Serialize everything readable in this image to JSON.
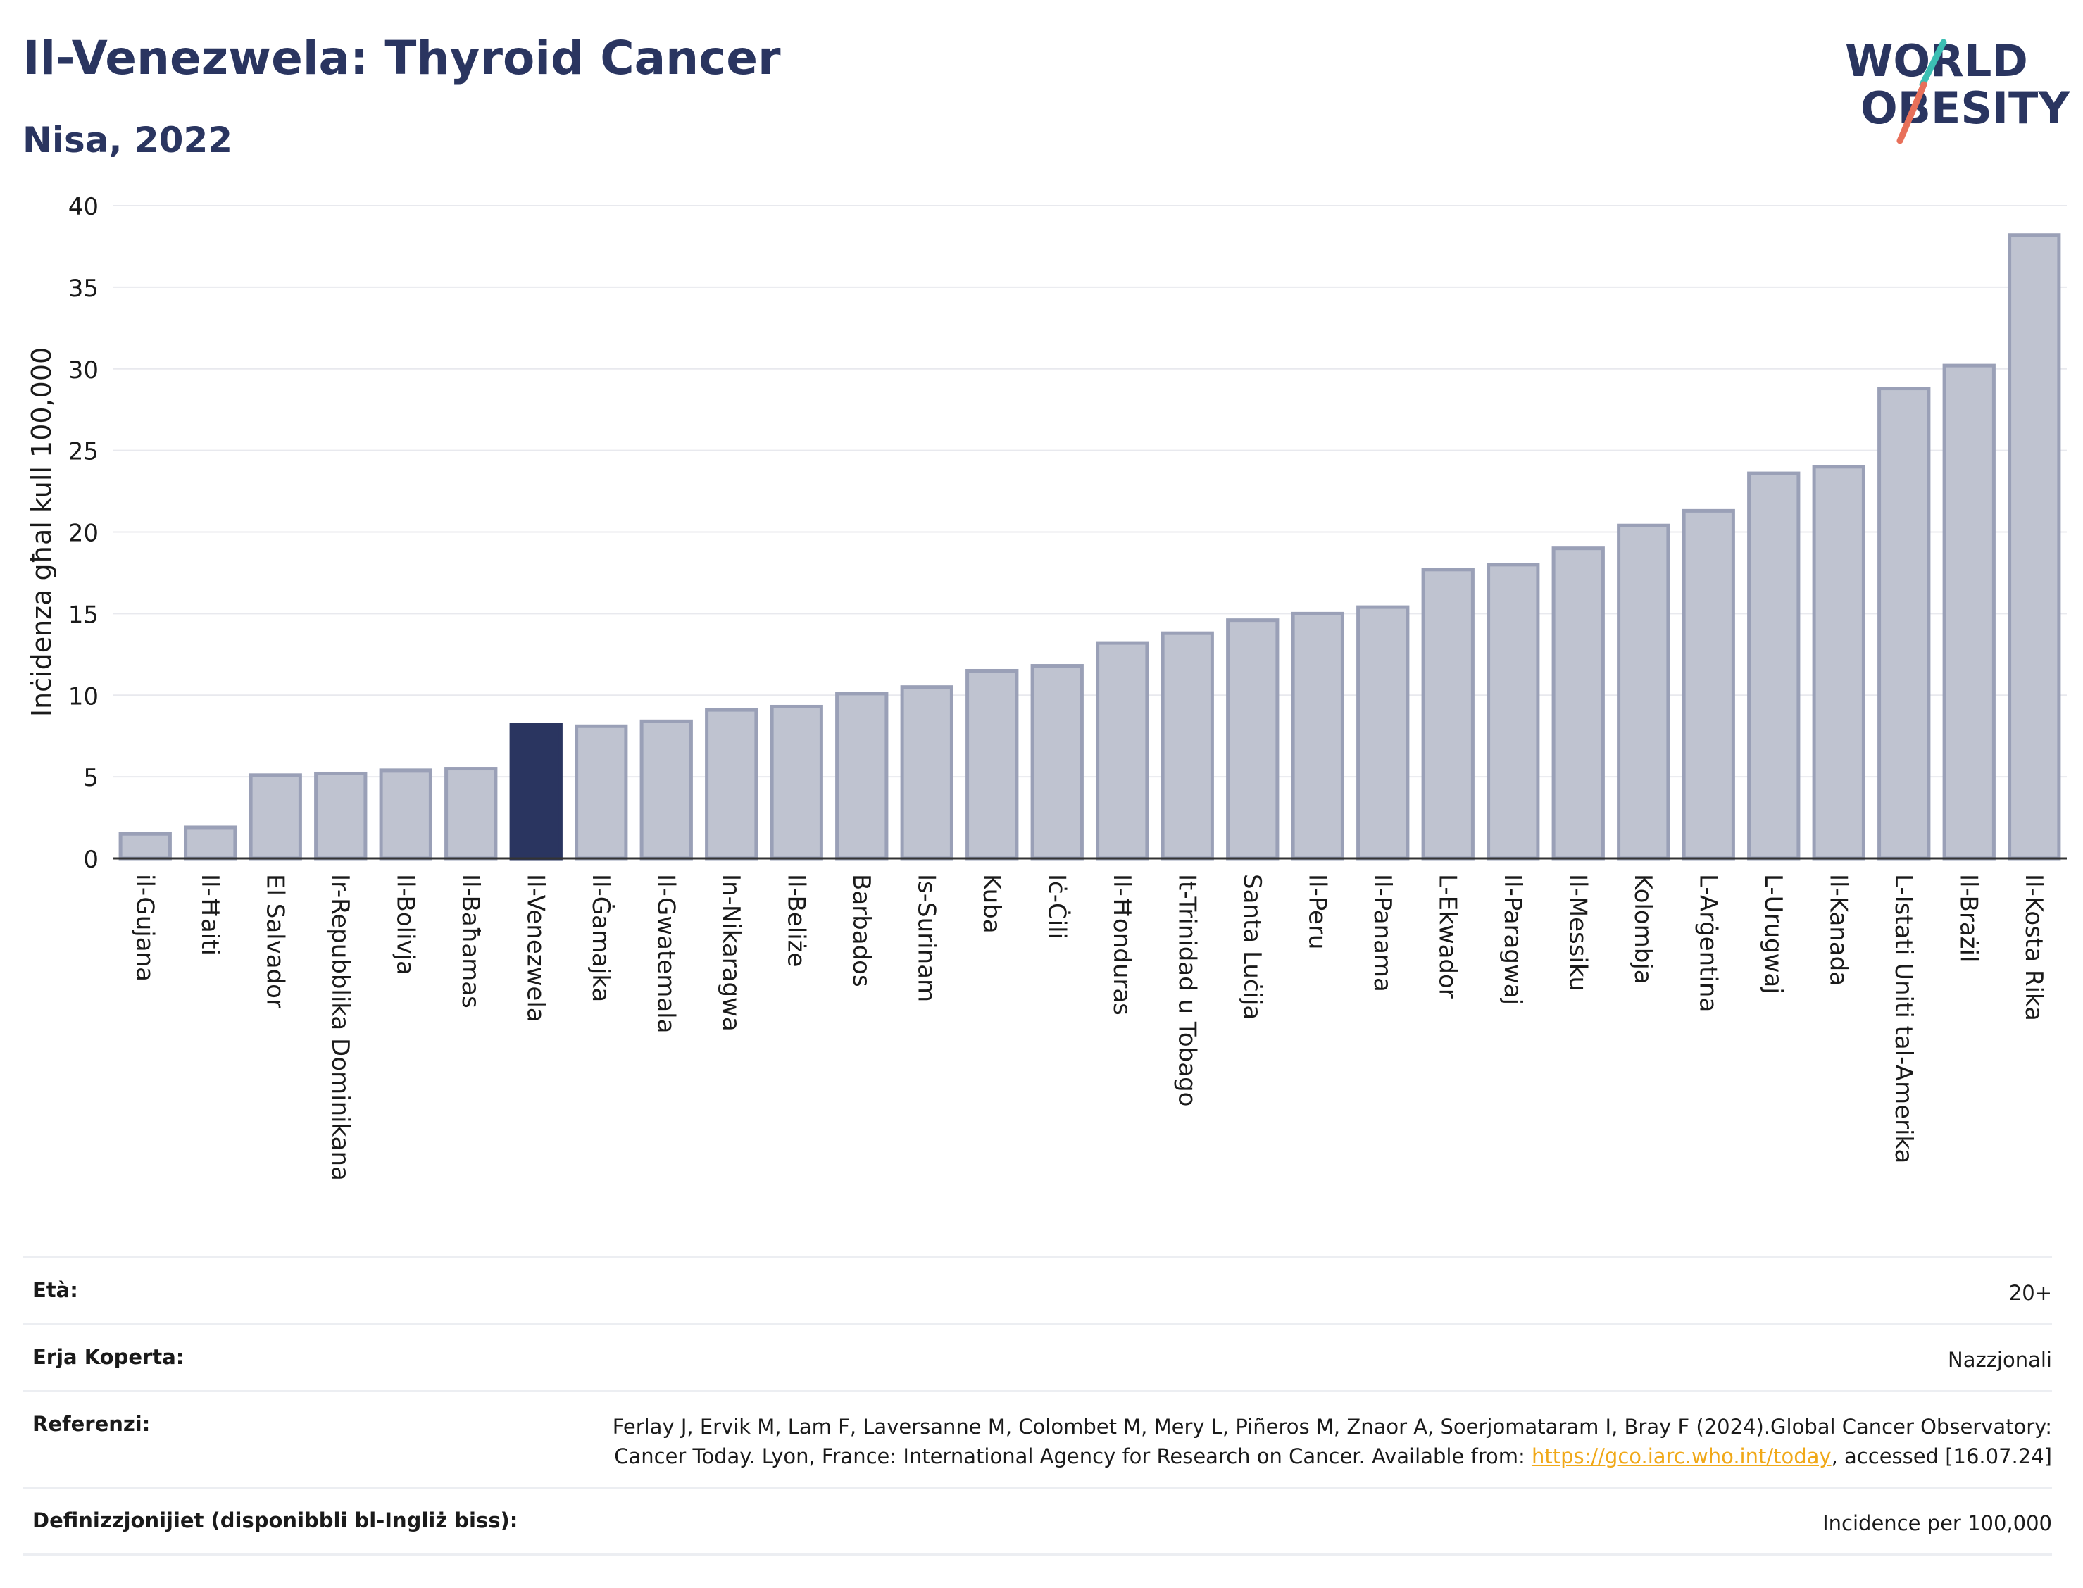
{
  "header": {
    "title": "Il-Venezwela: Thyroid Cancer",
    "subtitle": "Nisa, 2022"
  },
  "logo": {
    "line1": "WORLD",
    "line2": "OBESITY",
    "text_color": "#2a3560",
    "slash_top_color": "#3cbfb4",
    "slash_bottom_color": "#e8705a"
  },
  "colors": {
    "bar_default": "#bfc3d0",
    "bar_default_stroke": "#9aa0b7",
    "bar_highlight": "#2a3560",
    "grid": "#e8e9ee",
    "axis": "#333333"
  },
  "chart_data": {
    "type": "bar",
    "ylabel": "Inċidenza għal kull 100,000",
    "ylim": [
      0,
      40
    ],
    "yticks": [
      0,
      5,
      10,
      15,
      20,
      25,
      30,
      35,
      40
    ],
    "grid": true,
    "highlight": "Il-Venezwela",
    "categories": [
      "il-Gujana",
      "Il-Ħaiti",
      "El Salvador",
      "Ir-Repubblika Dominikana",
      "Il-Bolivja",
      "Il-Baħamas",
      "Il-Venezwela",
      "Il-Ġamajka",
      "Il-Gwatemala",
      "In-Nikaragwa",
      "Il-Beliże",
      "Barbados",
      "Is-Surinam",
      "Kuba",
      "Iċ-Ċili",
      "Il-Ħonduras",
      "It-Trinidad u Tobago",
      "Santa Luċija",
      "Il-Peru",
      "Il-Panama",
      "L-Ekwador",
      "Il-Paragwaj",
      "Il-Messiku",
      "Kolombja",
      "L-Arġentina",
      "L-Urugwaj",
      "Il-Kanada",
      "L-Istati Uniti tal-Amerika",
      "Il-Brażil",
      "Il-Kosta Rika"
    ],
    "values": [
      1.5,
      1.9,
      5.1,
      5.2,
      5.4,
      5.5,
      8.2,
      8.1,
      8.4,
      9.1,
      9.3,
      10.1,
      10.5,
      11.5,
      11.8,
      13.2,
      13.8,
      14.6,
      15.0,
      15.4,
      17.7,
      18.0,
      19.0,
      20.4,
      21.3,
      23.6,
      24.0,
      28.8,
      30.2,
      38.2
    ]
  },
  "meta": {
    "age_label": "Età:",
    "age_value": "20+",
    "coverage_label": "Erja Koperta:",
    "coverage_value": "Nazzjonali",
    "references_label": "Referenzi:",
    "references_text": "Ferlay J, Ervik M, Lam F, Laversanne M, Colombet M, Mery L, Piñeros M, Znaor A, Soerjomataram I, Bray F (2024).Global Cancer Observatory: Cancer Today. Lyon, France: International Agency for Research on Cancer. Available from: ",
    "references_link": "https://gco.iarc.who.int/today",
    "references_after": ", accessed [16.07.24]",
    "definitions_label": "Definizzjonijiet (disponibbli bl-Ingliż biss):",
    "definitions_value": "Incidence per 100,000"
  }
}
